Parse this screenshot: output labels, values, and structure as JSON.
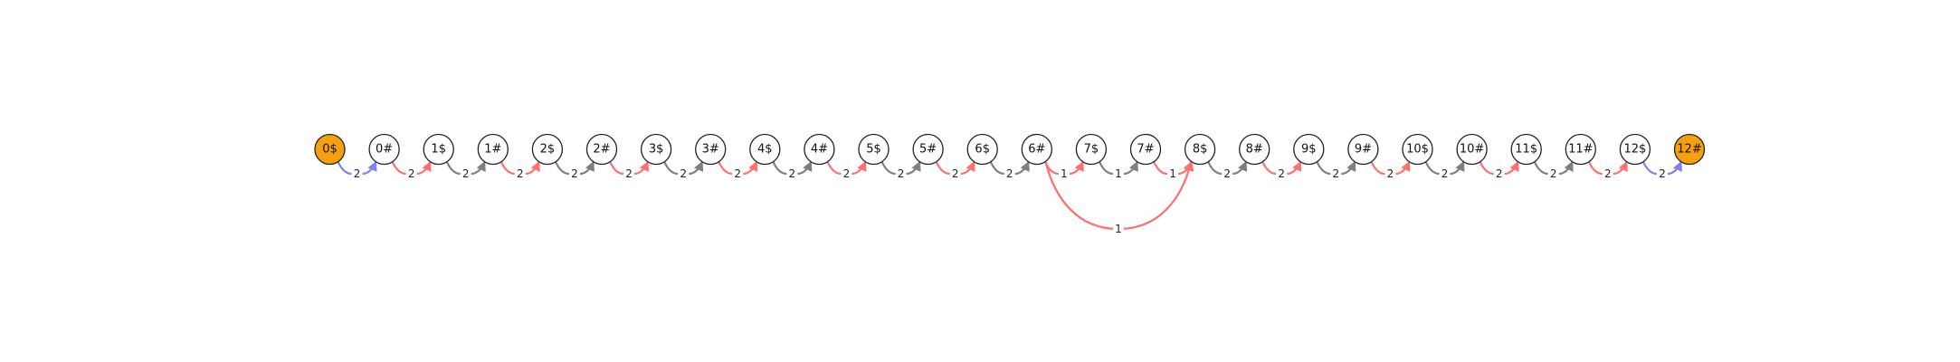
{
  "colors": {
    "node_fill_default": "#ffffff",
    "node_fill_terminal": "#f5a00f",
    "edge_gray": "#7f7f7f",
    "edge_red": "#ff7070",
    "edge_blue": "#8080ee"
  },
  "nodes": [
    {
      "id": "0$",
      "label": "0$",
      "terminal": true
    },
    {
      "id": "0#",
      "label": "0#",
      "terminal": false
    },
    {
      "id": "1$",
      "label": "1$",
      "terminal": false
    },
    {
      "id": "1#",
      "label": "1#",
      "terminal": false
    },
    {
      "id": "2$",
      "label": "2$",
      "terminal": false
    },
    {
      "id": "2#",
      "label": "2#",
      "terminal": false
    },
    {
      "id": "3$",
      "label": "3$",
      "terminal": false
    },
    {
      "id": "3#",
      "label": "3#",
      "terminal": false
    },
    {
      "id": "4$",
      "label": "4$",
      "terminal": false
    },
    {
      "id": "4#",
      "label": "4#",
      "terminal": false
    },
    {
      "id": "5$",
      "label": "5$",
      "terminal": false
    },
    {
      "id": "5#",
      "label": "5#",
      "terminal": false
    },
    {
      "id": "6$",
      "label": "6$",
      "terminal": false
    },
    {
      "id": "6#",
      "label": "6#",
      "terminal": false
    },
    {
      "id": "7$",
      "label": "7$",
      "terminal": false
    },
    {
      "id": "7#",
      "label": "7#",
      "terminal": false
    },
    {
      "id": "8$",
      "label": "8$",
      "terminal": false
    },
    {
      "id": "8#",
      "label": "8#",
      "terminal": false
    },
    {
      "id": "9$",
      "label": "9$",
      "terminal": false
    },
    {
      "id": "9#",
      "label": "9#",
      "terminal": false
    },
    {
      "id": "10$",
      "label": "10$",
      "terminal": false
    },
    {
      "id": "10#",
      "label": "10#",
      "terminal": false
    },
    {
      "id": "11$",
      "label": "11$",
      "terminal": false
    },
    {
      "id": "11#",
      "label": "11#",
      "terminal": false
    },
    {
      "id": "12$",
      "label": "12$",
      "terminal": false
    },
    {
      "id": "12#",
      "label": "12#",
      "terminal": true
    }
  ],
  "edges": [
    {
      "from": "0$",
      "to": "0#",
      "label": "2",
      "color": "blue"
    },
    {
      "from": "0#",
      "to": "1$",
      "label": "2",
      "color": "red"
    },
    {
      "from": "1$",
      "to": "1#",
      "label": "2",
      "color": "gray"
    },
    {
      "from": "1#",
      "to": "2$",
      "label": "2",
      "color": "red"
    },
    {
      "from": "2$",
      "to": "2#",
      "label": "2",
      "color": "gray"
    },
    {
      "from": "2#",
      "to": "3$",
      "label": "2",
      "color": "red"
    },
    {
      "from": "3$",
      "to": "3#",
      "label": "2",
      "color": "gray"
    },
    {
      "from": "3#",
      "to": "4$",
      "label": "2",
      "color": "red"
    },
    {
      "from": "4$",
      "to": "4#",
      "label": "2",
      "color": "gray"
    },
    {
      "from": "4#",
      "to": "5$",
      "label": "2",
      "color": "red"
    },
    {
      "from": "5$",
      "to": "5#",
      "label": "2",
      "color": "gray"
    },
    {
      "from": "5#",
      "to": "6$",
      "label": "2",
      "color": "red"
    },
    {
      "from": "6$",
      "to": "6#",
      "label": "2",
      "color": "gray"
    },
    {
      "from": "6#",
      "to": "7$",
      "label": "1",
      "color": "red"
    },
    {
      "from": "7$",
      "to": "7#",
      "label": "1",
      "color": "gray"
    },
    {
      "from": "7#",
      "to": "8$",
      "label": "1",
      "color": "red"
    },
    {
      "from": "6#",
      "to": "8$",
      "label": "1",
      "color": "red",
      "curved": true
    },
    {
      "from": "8$",
      "to": "8#",
      "label": "2",
      "color": "gray"
    },
    {
      "from": "8#",
      "to": "9$",
      "label": "2",
      "color": "red"
    },
    {
      "from": "9$",
      "to": "9#",
      "label": "2",
      "color": "gray"
    },
    {
      "from": "9#",
      "to": "10$",
      "label": "2",
      "color": "red"
    },
    {
      "from": "10$",
      "to": "10#",
      "label": "2",
      "color": "gray"
    },
    {
      "from": "10#",
      "to": "11$",
      "label": "2",
      "color": "red"
    },
    {
      "from": "11$",
      "to": "11#",
      "label": "2",
      "color": "gray"
    },
    {
      "from": "11#",
      "to": "12$",
      "label": "2",
      "color": "red"
    },
    {
      "from": "12$",
      "to": "12#",
      "label": "2",
      "color": "blue"
    }
  ]
}
